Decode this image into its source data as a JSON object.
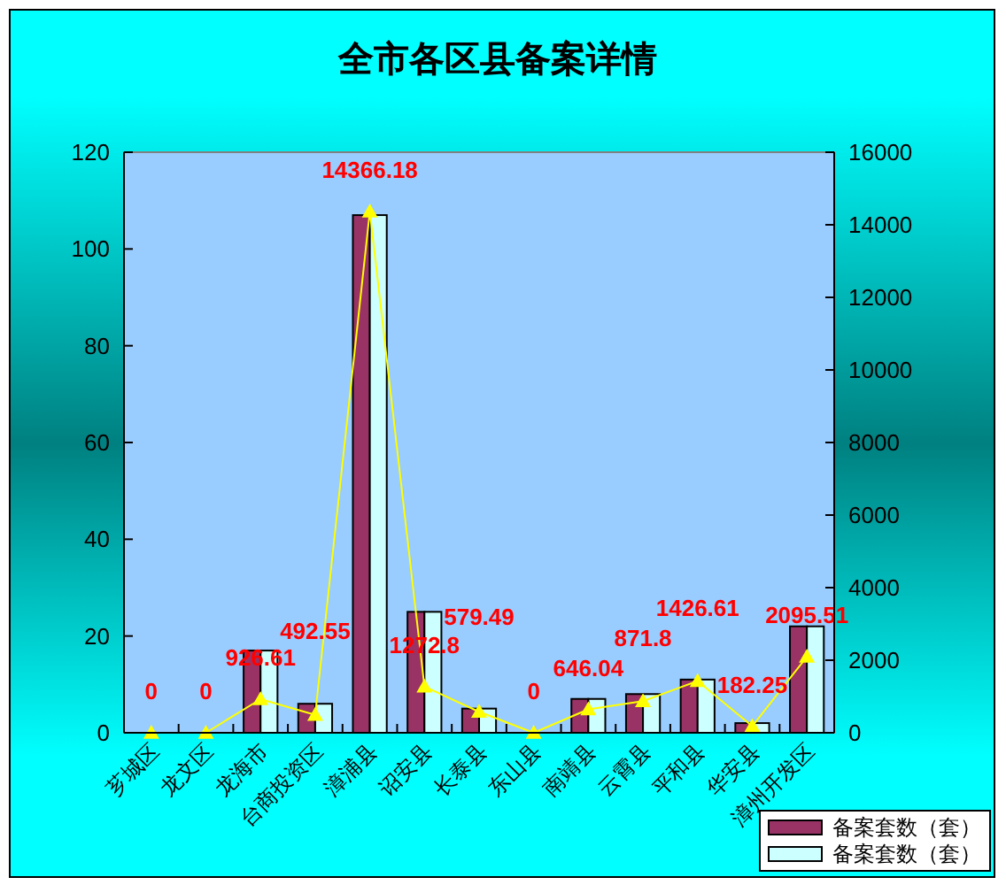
{
  "chart_data": {
    "type": "bar",
    "title": "全市各区县备案详情",
    "categories": [
      "芗城区",
      "龙文区",
      "龙海市",
      "台商投资区",
      "漳浦县",
      "诏安县",
      "长泰县",
      "东山县",
      "南靖县",
      "云霄县",
      "平和县",
      "华安县",
      "漳州开发区"
    ],
    "series": [
      {
        "name": "备案套数（套）",
        "color": "#993366",
        "values": [
          0,
          0,
          17,
          6,
          107,
          25,
          5,
          0,
          7,
          8,
          11,
          2,
          22
        ]
      },
      {
        "name": "备案套数（套）",
        "color": "#ccffff",
        "values": [
          0,
          0,
          17,
          6,
          107,
          25,
          5,
          0,
          7,
          8,
          11,
          2,
          22
        ]
      },
      {
        "type": "line",
        "axis": "y2",
        "color": "#ffff00",
        "values": [
          0,
          0,
          926.61,
          492.55,
          14366.18,
          1272.8,
          579.49,
          0,
          646.04,
          871.8,
          1426.61,
          182.25,
          2095.51
        ],
        "value_labels": [
          "0",
          "0",
          "926.61",
          "492.55",
          "14366.18",
          "1272.8",
          "579.49",
          "0",
          "646.04",
          "871.8",
          "1426.61",
          "182.25",
          "2095.51"
        ]
      }
    ],
    "ylim": [
      0,
      120
    ],
    "yticks": [
      0,
      20,
      40,
      60,
      80,
      100,
      120
    ],
    "y2lim": [
      0,
      16000
    ],
    "y2ticks": [
      0,
      2000,
      4000,
      6000,
      8000,
      10000,
      12000,
      14000,
      16000
    ],
    "legend": "bottom right",
    "marker": "triangle"
  }
}
